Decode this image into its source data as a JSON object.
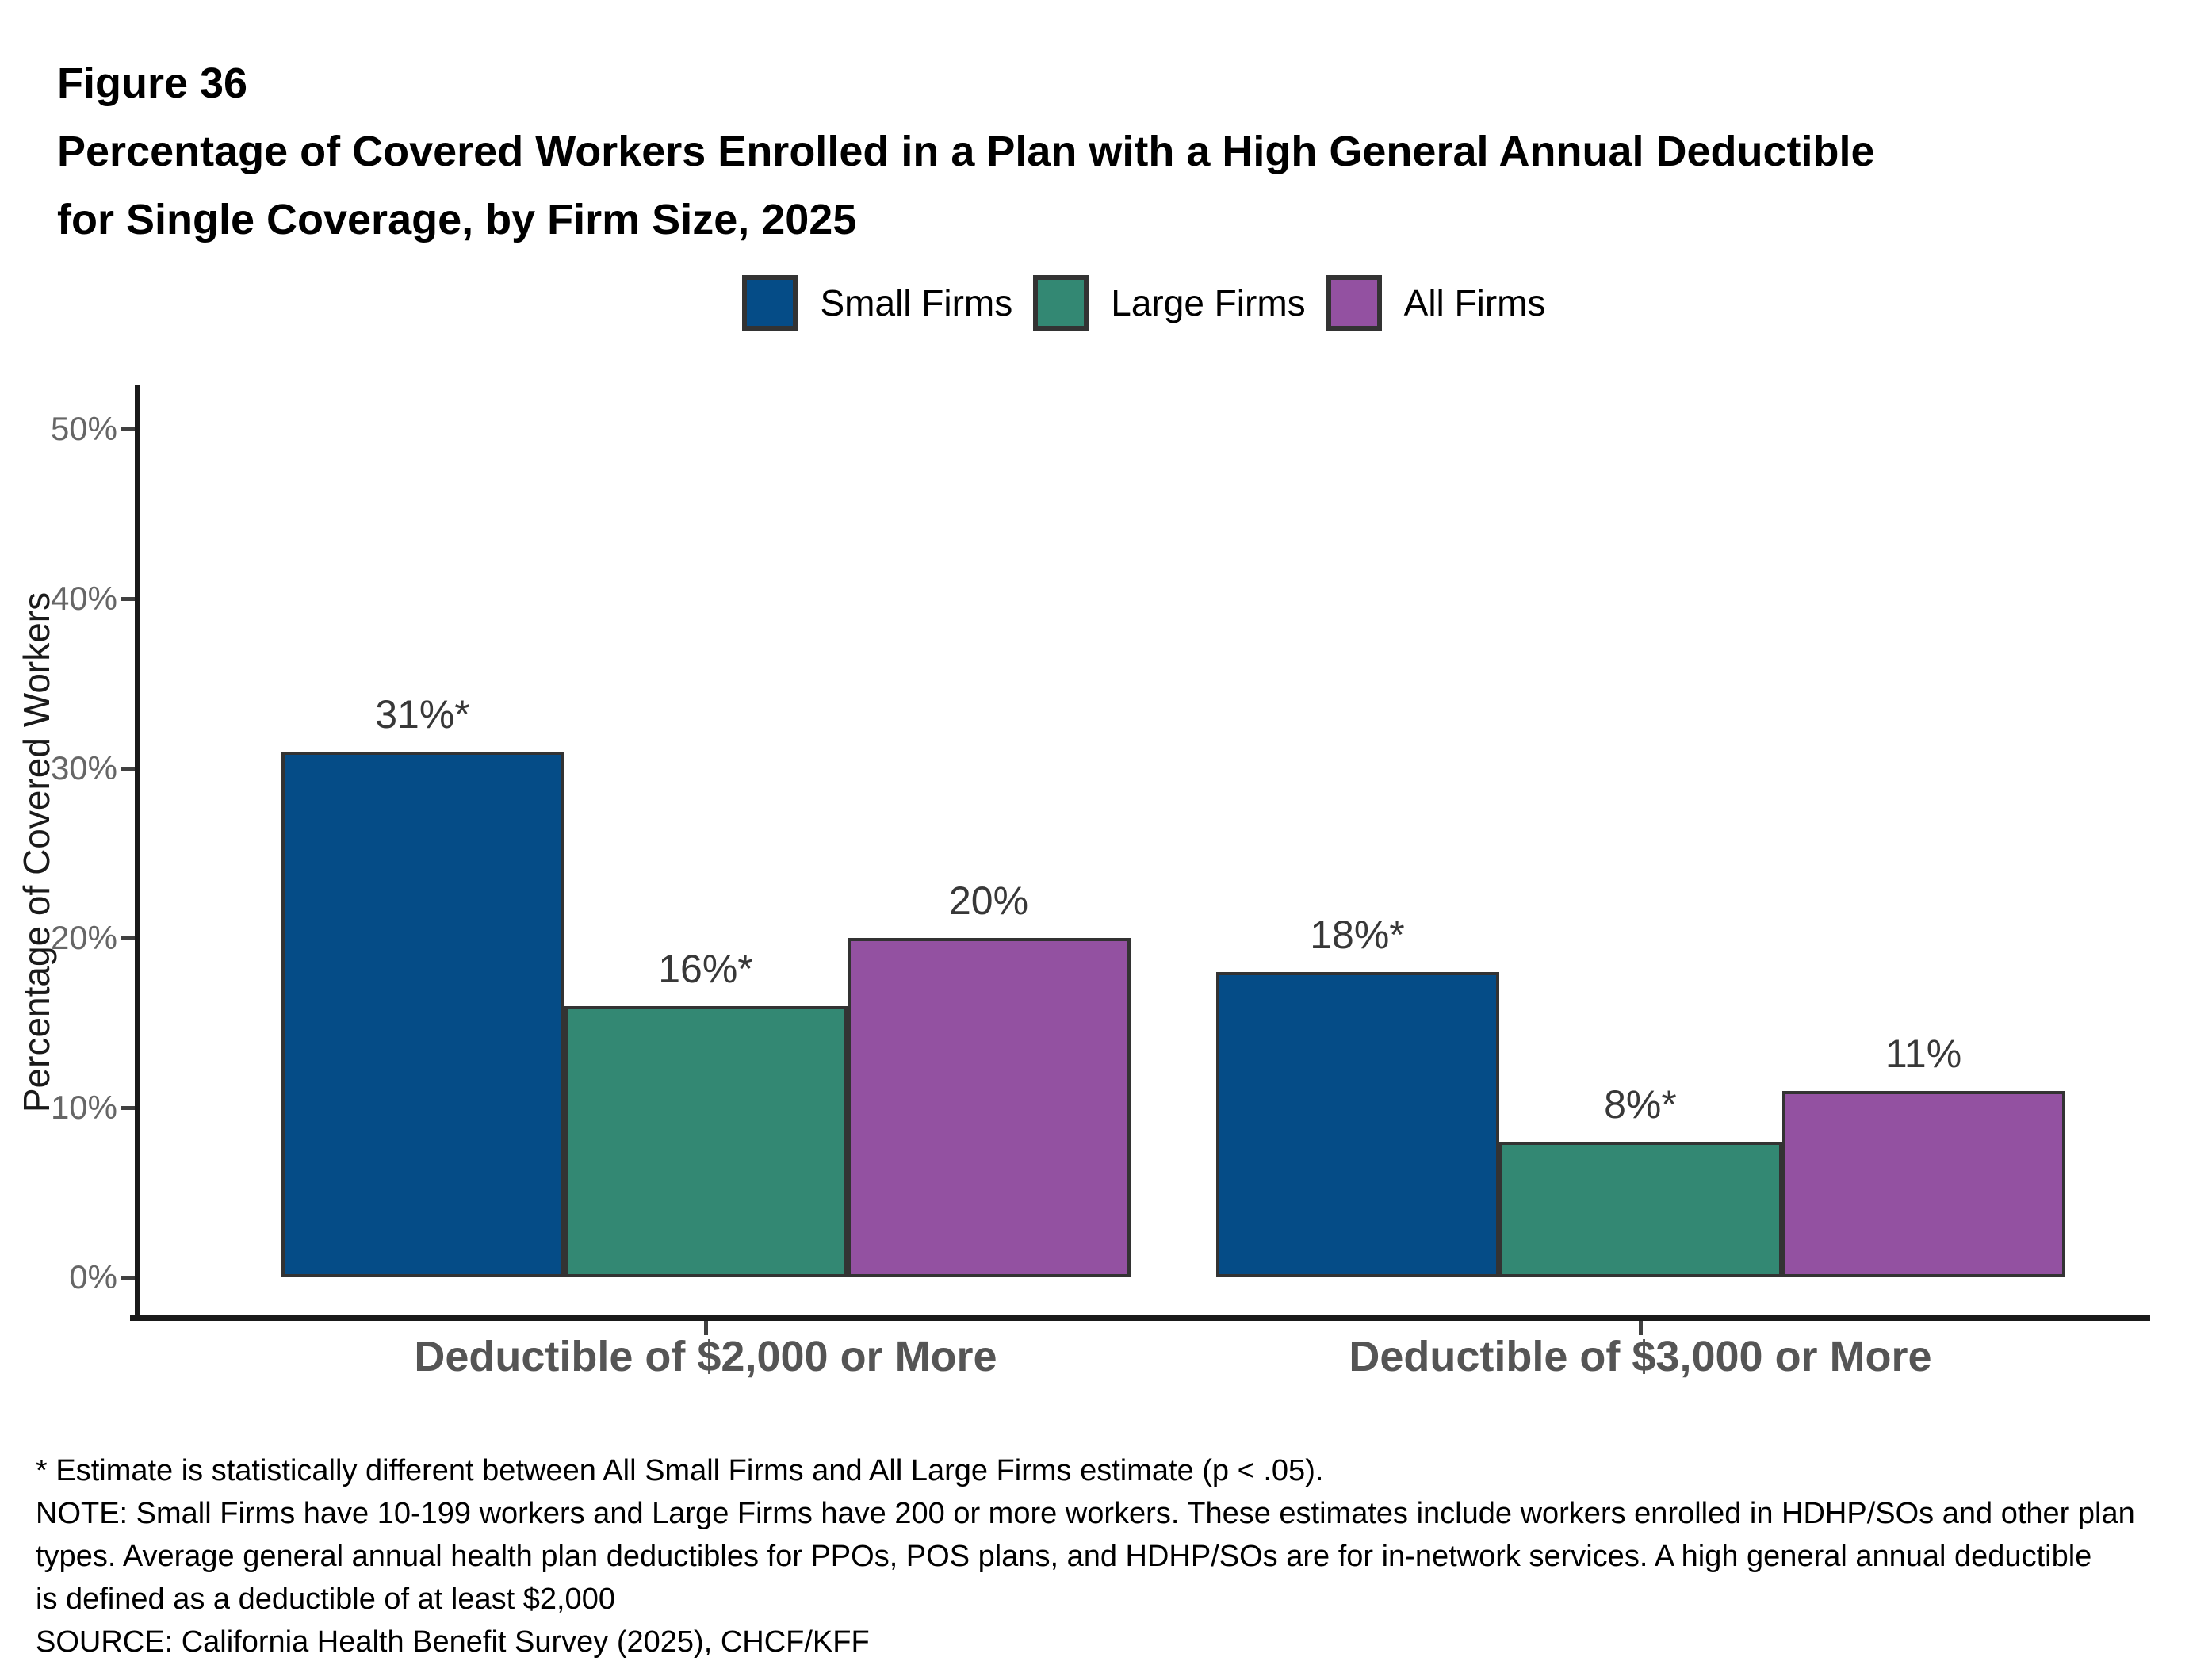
{
  "header": {
    "figure_label": "Figure 36",
    "title_line1": "Percentage of Covered Workers Enrolled in a Plan with a High General Annual Deductible",
    "title_line2": "for Single Coverage, by Firm Size, 2025"
  },
  "chart_data": {
    "type": "bar",
    "title": "Percentage of Covered Workers Enrolled in a Plan with a High General Annual Deductible for Single Coverage, by Firm Size, 2025",
    "categories": [
      "Deductible of $2,000 or More",
      "Deductible of $3,000 or More"
    ],
    "series": [
      {
        "name": "Small Firms",
        "color": "#054C87",
        "values": [
          31,
          18
        ],
        "labels": [
          "31%*",
          "18%*"
        ]
      },
      {
        "name": "Large Firms",
        "color": "#338873",
        "values": [
          16,
          8
        ],
        "labels": [
          "16%*",
          "8%*"
        ]
      },
      {
        "name": "All Firms",
        "color": "#9351A1",
        "values": [
          20,
          11
        ],
        "labels": [
          "20%",
          "11%"
        ]
      }
    ],
    "xlabel": "",
    "ylabel": "Percentage of Covered Workers",
    "y_ticks": [
      0,
      10,
      20,
      30,
      40,
      50
    ],
    "y_tick_labels": [
      "0%",
      "10%",
      "20%",
      "30%",
      "40%",
      "50%"
    ],
    "ylim": [
      0,
      52
    ],
    "grid": false,
    "legend_position": "top",
    "bar_border_color": "#333333"
  },
  "footnotes": {
    "lines": [
      "* Estimate is statistically different between All Small Firms and All Large Firms estimate (p < .05).",
      "NOTE: Small Firms have 10-199 workers and Large Firms have 200 or more workers. These estimates include workers enrolled in HDHP/SOs and other plan",
      "types. Average general annual health plan deductibles for PPOs, POS plans, and HDHP/SOs are for in-network services. A high general annual deductible",
      "is defined as a deductible of at least $2,000",
      "SOURCE: California Health Benefit Survey (2025), CHCF/KFF"
    ]
  }
}
